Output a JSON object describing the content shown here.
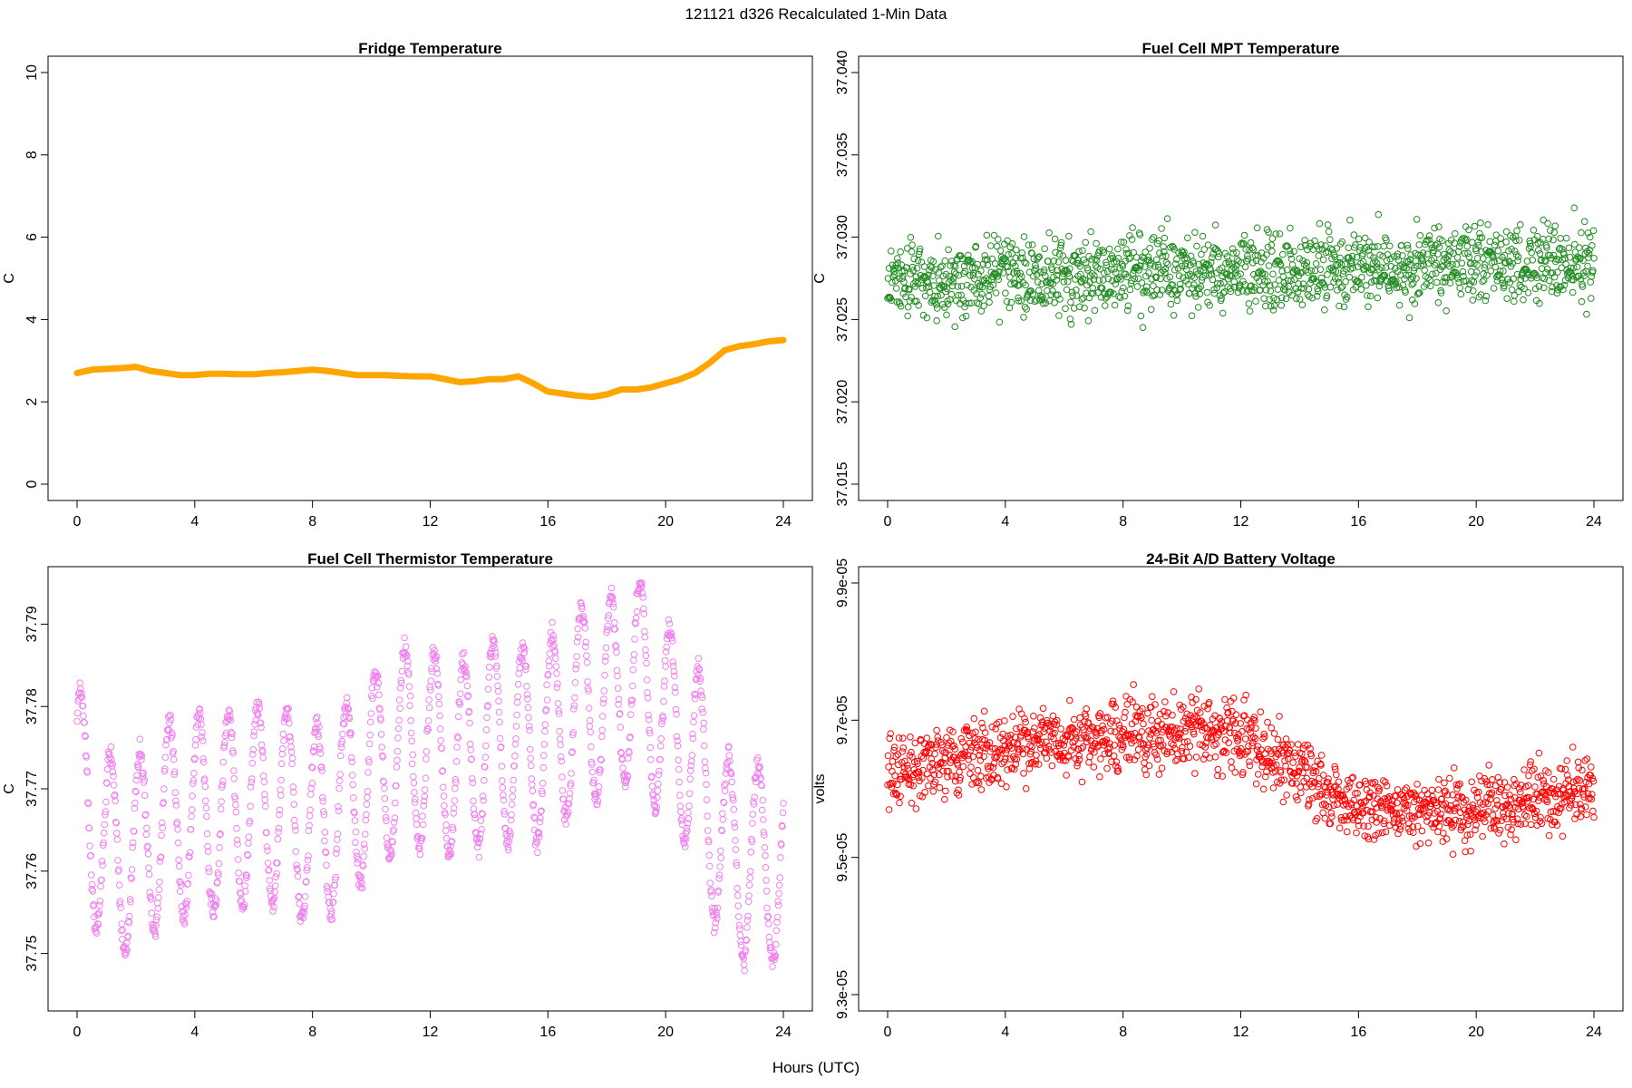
{
  "page": {
    "title": "121121   d326   Recalculated 1-Min Data",
    "xlabel": "Hours (UTC)"
  },
  "chart_data": [
    {
      "id": "fridge",
      "type": "line",
      "title": "Fridge Temperature",
      "ylabel": "C",
      "xlabel": "Hours (UTC)",
      "xlim": [
        0,
        24
      ],
      "ylim": [
        0,
        10
      ],
      "xticks": [
        "0",
        "4",
        "8",
        "12",
        "16",
        "20",
        "24"
      ],
      "yticks": [
        "0",
        "2",
        "4",
        "6",
        "8",
        "10"
      ],
      "color": "#FFA500",
      "grid": false,
      "series": [
        {
          "x": [
            0,
            0.5,
            1,
            1.5,
            2,
            2.5,
            3,
            3.5,
            4,
            4.5,
            5,
            5.5,
            6,
            6.5,
            7,
            7.5,
            8,
            8.5,
            9,
            9.5,
            10,
            10.5,
            11,
            11.5,
            12,
            12.5,
            13,
            13.5,
            14,
            14.5,
            15,
            15.5,
            16,
            16.5,
            17,
            17.5,
            18,
            18.5,
            19,
            19.5,
            20,
            20.5,
            21,
            21.5,
            22,
            22.5,
            23,
            23.5,
            24
          ],
          "y": [
            2.7,
            2.78,
            2.8,
            2.82,
            2.85,
            2.75,
            2.7,
            2.65,
            2.65,
            2.68,
            2.68,
            2.67,
            2.67,
            2.7,
            2.72,
            2.75,
            2.78,
            2.75,
            2.7,
            2.65,
            2.65,
            2.65,
            2.63,
            2.62,
            2.62,
            2.55,
            2.48,
            2.5,
            2.55,
            2.55,
            2.62,
            2.45,
            2.25,
            2.2,
            2.15,
            2.12,
            2.18,
            2.3,
            2.3,
            2.35,
            2.45,
            2.55,
            2.7,
            2.95,
            3.25,
            3.35,
            3.4,
            3.47,
            3.5
          ]
        }
      ]
    },
    {
      "id": "mpt",
      "type": "scatter",
      "title": "Fuel Cell MPT Temperature",
      "ylabel": "C",
      "xlabel": "Hours (UTC)",
      "xlim": [
        0,
        24
      ],
      "ylim": [
        37.015,
        37.04
      ],
      "xticks": [
        "0",
        "4",
        "8",
        "12",
        "16",
        "20",
        "24"
      ],
      "yticks": [
        "37.015",
        "37.020",
        "37.025",
        "37.030",
        "37.035",
        "37.040"
      ],
      "color": "#228B22",
      "grid": false,
      "series": [
        {
          "trend": [
            [
              0,
              37.0275
            ],
            [
              24,
              37.0285
            ]
          ],
          "spread": 0.0035,
          "points_per_hour": 60
        }
      ]
    },
    {
      "id": "thermistor",
      "type": "scatter",
      "title": "Fuel Cell Thermistor Temperature",
      "ylabel": "C",
      "xlabel": "Hours (UTC)",
      "xlim": [
        0,
        24
      ],
      "ylim": [
        37.745,
        37.795
      ],
      "xticks": [
        "0",
        "4",
        "8",
        "12",
        "16",
        "20",
        "24"
      ],
      "yticks": [
        "37.75",
        "37.76",
        "37.77",
        "37.78",
        "37.79"
      ],
      "color": "#EE82EE",
      "grid": false,
      "series": [
        {
          "trend": [
            [
              0,
              37.771
            ],
            [
              1,
              37.762
            ],
            [
              2,
              37.762
            ],
            [
              3,
              37.766
            ],
            [
              4,
              37.767
            ],
            [
              5,
              37.767
            ],
            [
              6,
              37.768
            ],
            [
              7,
              37.768
            ],
            [
              8,
              37.765
            ],
            [
              9,
              37.768
            ],
            [
              10,
              37.772
            ],
            [
              11,
              37.775
            ],
            [
              12,
              37.775
            ],
            [
              13,
              37.773
            ],
            [
              14,
              37.776
            ],
            [
              15,
              37.775
            ],
            [
              16,
              37.776
            ],
            [
              17,
              37.78
            ],
            [
              18,
              37.781
            ],
            [
              19,
              37.784
            ],
            [
              20,
              37.778
            ],
            [
              21,
              37.774
            ],
            [
              22,
              37.762
            ],
            [
              23,
              37.761
            ],
            [
              24,
              37.761
            ]
          ],
          "wave_amplitude": 0.012,
          "wave_period_hours": 1.0,
          "spread": 0.002,
          "points_per_hour": 60
        }
      ]
    },
    {
      "id": "battery",
      "type": "scatter",
      "title": "24-Bit A/D Battery Voltage",
      "ylabel": "volts",
      "xlabel": "Hours (UTC)",
      "xlim": [
        0,
        24
      ],
      "ylim": [
        9.3e-05,
        9.9e-05
      ],
      "xticks": [
        "0",
        "4",
        "8",
        "12",
        "16",
        "20",
        "24"
      ],
      "yticks": [
        "9.3e-05",
        "9.5e-05",
        "9.7e-05",
        "9.9e-05"
      ],
      "ytick_values": [
        9.3e-05,
        9.5e-05,
        9.7e-05,
        9.9e-05
      ],
      "color": "#FF0000",
      "grid": false,
      "series": [
        {
          "trend": [
            [
              0,
              9.62e-05
            ],
            [
              4,
              9.66e-05
            ],
            [
              8,
              9.68e-05
            ],
            [
              12,
              9.68e-05
            ],
            [
              16,
              9.57e-05
            ],
            [
              20,
              9.57e-05
            ],
            [
              24,
              9.6e-05
            ]
          ],
          "spread": 7.5e-07,
          "points_per_hour": 60
        }
      ]
    }
  ]
}
